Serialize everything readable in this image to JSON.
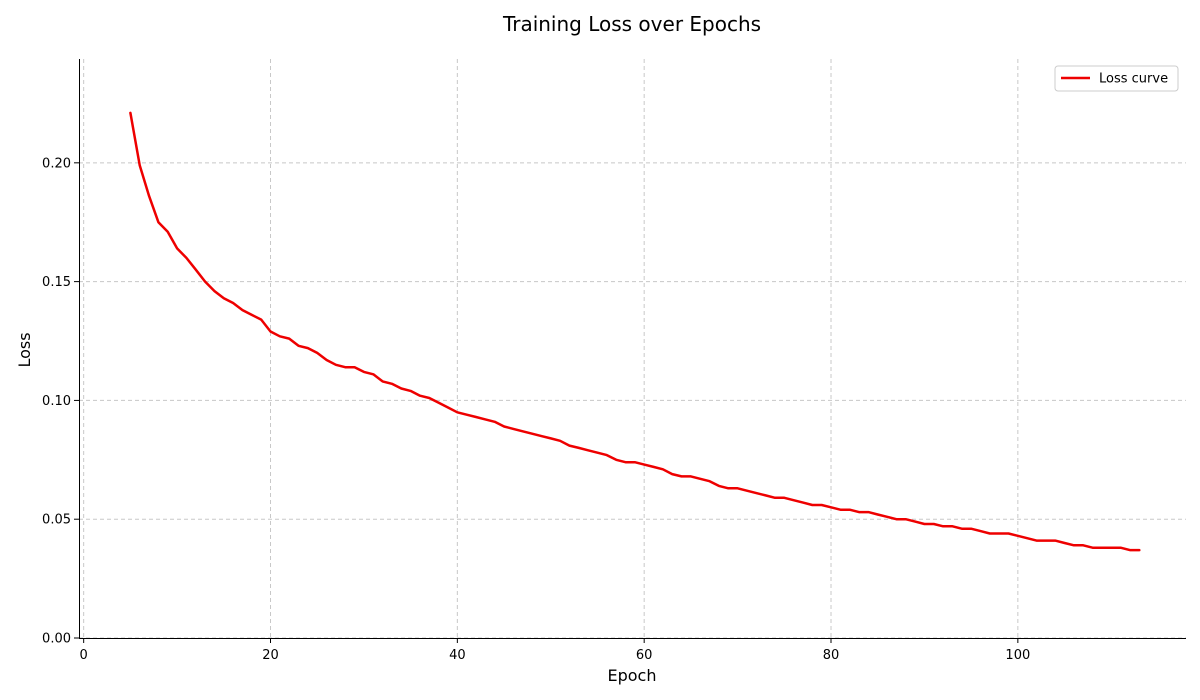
{
  "chart_data": {
    "type": "line",
    "title": "Training Loss over Epochs",
    "xlabel": "Epoch",
    "ylabel": "Loss",
    "xlim": [
      -0.5,
      118
    ],
    "ylim": [
      0,
      0.2437
    ],
    "xticks": [
      0,
      20,
      40,
      60,
      80,
      100
    ],
    "yticks": [
      0,
      0.05,
      0.1,
      0.15,
      0.2
    ],
    "ytick_labels": [
      "0.00",
      "0.05",
      "0.10",
      "0.15",
      "0.20"
    ],
    "grid": true,
    "legend": "top-right",
    "colors": {
      "series": "#ee0000"
    },
    "series": [
      {
        "name": "Loss curve",
        "x": [
          5,
          6,
          7,
          8,
          9,
          10,
          11,
          12,
          13,
          14,
          15,
          16,
          17,
          18,
          19,
          20,
          21,
          22,
          23,
          24,
          25,
          26,
          27,
          28,
          29,
          30,
          31,
          32,
          33,
          34,
          35,
          36,
          37,
          38,
          39,
          40,
          41,
          42,
          43,
          44,
          45,
          46,
          47,
          48,
          49,
          50,
          51,
          52,
          53,
          54,
          55,
          56,
          57,
          58,
          59,
          60,
          61,
          62,
          63,
          64,
          65,
          66,
          67,
          68,
          69,
          70,
          71,
          72,
          73,
          74,
          75,
          76,
          77,
          78,
          79,
          80,
          81,
          82,
          83,
          84,
          85,
          86,
          87,
          88,
          89,
          90,
          91,
          92,
          93,
          94,
          95,
          96,
          97,
          98,
          99,
          100,
          101,
          102,
          103,
          104,
          105,
          106,
          107,
          108,
          109,
          110,
          111,
          112,
          113
        ],
        "values": [
          0.221,
          0.199,
          0.186,
          0.175,
          0.171,
          0.164,
          0.16,
          0.155,
          0.15,
          0.146,
          0.143,
          0.141,
          0.138,
          0.136,
          0.134,
          0.129,
          0.127,
          0.126,
          0.123,
          0.122,
          0.12,
          0.117,
          0.115,
          0.114,
          0.114,
          0.112,
          0.111,
          0.108,
          0.107,
          0.105,
          0.104,
          0.102,
          0.101,
          0.099,
          0.097,
          0.095,
          0.094,
          0.093,
          0.092,
          0.091,
          0.089,
          0.088,
          0.087,
          0.086,
          0.085,
          0.084,
          0.083,
          0.081,
          0.08,
          0.079,
          0.078,
          0.077,
          0.075,
          0.074,
          0.074,
          0.073,
          0.072,
          0.071,
          0.069,
          0.068,
          0.068,
          0.067,
          0.066,
          0.064,
          0.063,
          0.063,
          0.062,
          0.061,
          0.06,
          0.059,
          0.059,
          0.058,
          0.057,
          0.056,
          0.056,
          0.055,
          0.054,
          0.054,
          0.053,
          0.053,
          0.052,
          0.051,
          0.05,
          0.05,
          0.049,
          0.048,
          0.048,
          0.047,
          0.047,
          0.046,
          0.046,
          0.045,
          0.044,
          0.044,
          0.044,
          0.043,
          0.042,
          0.041,
          0.041,
          0.041,
          0.04,
          0.039,
          0.039,
          0.038,
          0.038,
          0.038,
          0.038,
          0.037,
          0.037
        ]
      }
    ]
  }
}
